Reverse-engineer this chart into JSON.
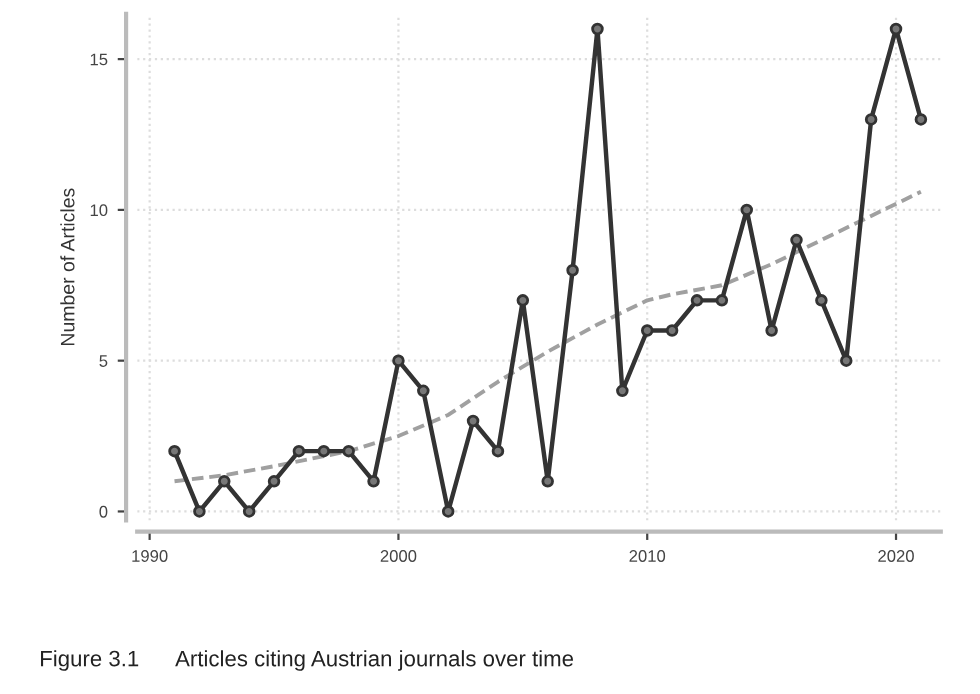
{
  "chart_data": {
    "type": "line",
    "ylabel": "Number of Articles",
    "x": [
      1991,
      1992,
      1993,
      1994,
      1995,
      1996,
      1997,
      1998,
      1999,
      2000,
      2001,
      2002,
      2003,
      2004,
      2005,
      2006,
      2007,
      2008,
      2009,
      2010,
      2011,
      2012,
      2013,
      2014,
      2015,
      2016,
      2017,
      2018,
      2019,
      2020,
      2021
    ],
    "series": [
      {
        "color": "#333333",
        "marker": "circle",
        "line_style": "solid",
        "values": [
          2,
          0,
          1,
          0,
          1,
          2,
          2,
          2,
          1,
          5,
          4,
          0,
          3,
          2,
          7,
          1,
          8,
          16,
          4,
          6,
          6,
          7,
          7,
          10,
          6,
          9,
          7,
          5,
          13,
          16,
          13
        ]
      },
      {
        "color": "#a0a0a0",
        "marker": "none",
        "line_style": "dashed",
        "x": [
          1991,
          1993,
          1995,
          1998,
          2000,
          2002,
          2004,
          2006,
          2008,
          2010,
          2011,
          2013,
          2015,
          2017,
          2019,
          2021
        ],
        "values": [
          1.0,
          1.2,
          1.5,
          2.0,
          2.5,
          3.2,
          4.3,
          5.3,
          6.2,
          7.0,
          7.2,
          7.5,
          8.2,
          9.0,
          9.8,
          10.6
        ]
      }
    ],
    "xlim": [
      1989.5,
      2021.8
    ],
    "xticks": [
      1990,
      2000,
      2010,
      2020
    ],
    "ylim": [
      -0.3,
      16.5
    ],
    "yticks": [
      0,
      5,
      10,
      15
    ],
    "grid": true,
    "annotations": [
      "Figure 3.1      Articles citing Austrian journals over time"
    ]
  }
}
